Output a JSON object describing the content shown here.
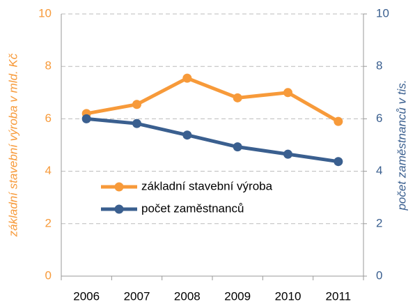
{
  "chart_data": {
    "type": "line",
    "y_label": "základní stavební výroba v mld. Kč",
    "y2_label": "počet zaměstnanců v tis.",
    "categories": [
      "2006",
      "2007",
      "2008",
      "2009",
      "2010",
      "2011"
    ],
    "series": [
      {
        "name": "základní stavební výroba",
        "color": "#f79a3a",
        "values": [
          6.2,
          6.55,
          7.55,
          6.8,
          7.0,
          5.9
        ]
      },
      {
        "name": "počet zaměstnanců",
        "color": "#3a5f8f",
        "axis": "y2",
        "values": [
          6.0,
          5.82,
          5.38,
          4.93,
          4.65,
          4.37
        ]
      }
    ],
    "ylim": [
      0,
      10
    ],
    "yticks": [
      0,
      2,
      4,
      6,
      8,
      10
    ],
    "y2lim": [
      0,
      10
    ],
    "y2ticks": [
      0,
      2,
      4,
      6,
      8,
      10
    ],
    "grid": true,
    "legend": "center-left"
  }
}
